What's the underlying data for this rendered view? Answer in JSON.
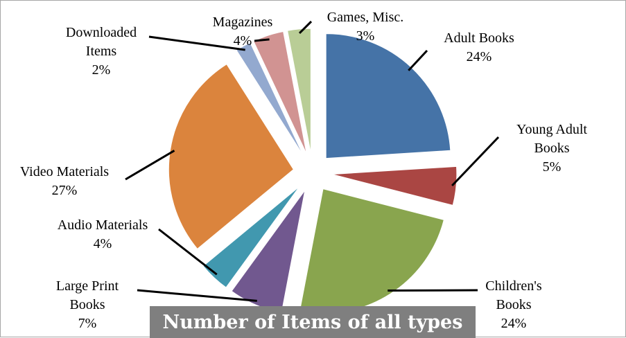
{
  "chart_data": {
    "type": "pie",
    "title": "Number of Items of all types",
    "slices": [
      {
        "label_lines": [
          "Adult Books"
        ],
        "pct_text": "24%",
        "value": 24,
        "color": "#4573a7"
      },
      {
        "label_lines": [
          "Young Adult",
          "Books"
        ],
        "pct_text": "5%",
        "value": 5,
        "color": "#aa4643"
      },
      {
        "label_lines": [
          "Children's",
          "Books"
        ],
        "pct_text": "24%",
        "value": 24,
        "color": "#89a54e"
      },
      {
        "label_lines": [
          "Large Print",
          "Books"
        ],
        "pct_text": "7%",
        "value": 7,
        "color": "#71588f"
      },
      {
        "label_lines": [
          "Audio Materials"
        ],
        "pct_text": "4%",
        "value": 4,
        "color": "#4198af"
      },
      {
        "label_lines": [
          "Video Materials"
        ],
        "pct_text": "27%",
        "value": 27,
        "color": "#db843d"
      },
      {
        "label_lines": [
          "Downloaded",
          "Items"
        ],
        "pct_text": "2%",
        "value": 2,
        "color": "#93a9cf"
      },
      {
        "label_lines": [
          "Magazines"
        ],
        "pct_text": "4%",
        "value": 4,
        "color": "#d19392"
      },
      {
        "label_lines": [
          "Games, Misc."
        ],
        "pct_text": "3%",
        "value": 3,
        "color": "#b9cd96"
      }
    ]
  }
}
